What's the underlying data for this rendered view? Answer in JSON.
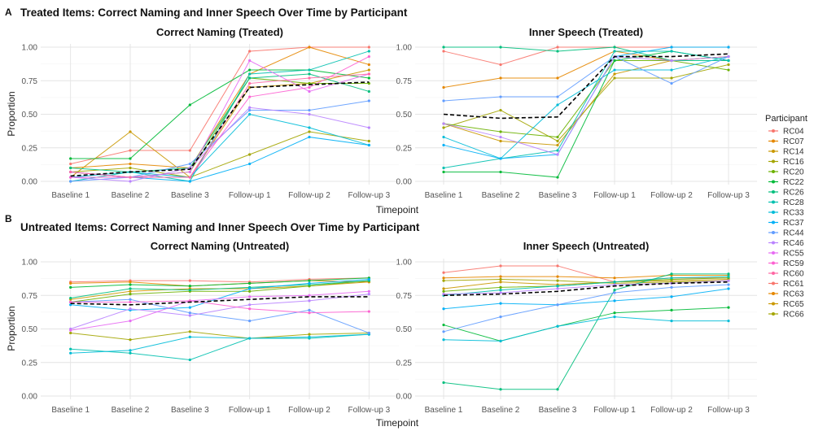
{
  "figure": {
    "sections": [
      {
        "tag": "A",
        "title": "Treated Items: Correct Naming and Inner Speech Over Time by Participant"
      },
      {
        "tag": "B",
        "title": "Untreated Items: Correct Naming and Inner Speech Over Time by Participant"
      }
    ],
    "legend": {
      "title": "Participant",
      "entries": [
        {
          "name": "RC04",
          "color": "#F8766D"
        },
        {
          "name": "RC07",
          "color": "#E58700"
        },
        {
          "name": "RC14",
          "color": "#C99800"
        },
        {
          "name": "RC16",
          "color": "#A3A500"
        },
        {
          "name": "RC20",
          "color": "#6BB100"
        },
        {
          "name": "RC22",
          "color": "#00BA38"
        },
        {
          "name": "RC26",
          "color": "#00BF7D"
        },
        {
          "name": "RC28",
          "color": "#00C0AF"
        },
        {
          "name": "RC33",
          "color": "#00BCD8"
        },
        {
          "name": "RC37",
          "color": "#00B0F6"
        },
        {
          "name": "RC44",
          "color": "#619CFF"
        },
        {
          "name": "RC46",
          "color": "#B983FF"
        },
        {
          "name": "RC55",
          "color": "#E76BF3"
        },
        {
          "name": "RC59",
          "color": "#FD61D1"
        },
        {
          "name": "RC60",
          "color": "#FF67A4"
        },
        {
          "name": "RC61",
          "color": "#F8766D"
        },
        {
          "name": "RC63",
          "color": "#E58700"
        },
        {
          "name": "RC65",
          "color": "#C99800"
        },
        {
          "name": "RC66",
          "color": "#A3A500"
        }
      ]
    }
  },
  "chart_data": [
    {
      "type": "line",
      "title": "Correct Naming (Treated)",
      "xlabel": "Timepoint",
      "ylabel": "Proportion",
      "ylim": [
        0,
        1
      ],
      "yticks": [
        "0.00",
        "0.25",
        "0.50",
        "0.75",
        "1.00"
      ],
      "categories": [
        "Baseline 1",
        "Baseline 2",
        "Baseline 3",
        "Follow-up 1",
        "Follow-up 2",
        "Follow-up 3"
      ],
      "series": [
        {
          "values": [
            0.13,
            0.23,
            0.23,
            0.97,
            1.0,
            1.0
          ]
        },
        {
          "values": [
            0.1,
            0.13,
            0.1,
            0.8,
            1.0,
            0.87
          ]
        },
        {
          "values": [
            0.03,
            0.37,
            0.03,
            0.7,
            0.73,
            0.83
          ]
        },
        {
          "values": [
            0.07,
            0.1,
            0.03,
            0.2,
            0.37,
            0.3
          ]
        },
        {
          "values": [
            0.07,
            0.03,
            0.07,
            0.77,
            0.73,
            0.73
          ]
        },
        {
          "values": [
            0.17,
            0.17,
            0.57,
            0.83,
            0.83,
            0.77
          ]
        },
        {
          "values": [
            0.1,
            0.07,
            0.1,
            0.77,
            0.8,
            0.67
          ]
        },
        {
          "values": [
            0.0,
            0.07,
            0.0,
            0.8,
            0.83,
            0.97
          ]
        },
        {
          "values": [
            0.03,
            0.07,
            0.03,
            0.5,
            0.4,
            0.27
          ]
        },
        {
          "values": [
            0.07,
            0.03,
            0.0,
            0.13,
            0.33,
            0.27
          ]
        },
        {
          "values": [
            0.0,
            0.03,
            0.13,
            0.53,
            0.53,
            0.6
          ]
        },
        {
          "values": [
            0.03,
            0.0,
            0.1,
            0.55,
            0.5,
            0.4
          ]
        },
        {
          "values": [
            0.07,
            0.03,
            0.07,
            0.9,
            0.67,
            0.8
          ]
        },
        {
          "values": [
            0.03,
            0.03,
            0.03,
            0.63,
            0.7,
            0.93
          ]
        },
        {
          "values": [
            0.07,
            0.03,
            0.03,
            0.73,
            0.77,
            0.8
          ]
        }
      ],
      "mean": [
        0.04,
        0.07,
        0.09,
        0.7,
        0.72,
        0.74
      ]
    },
    {
      "type": "line",
      "title": "Inner Speech (Treated)",
      "xlabel": "Timepoint",
      "ylabel": "",
      "ylim": [
        0,
        1
      ],
      "yticks": [
        "0.00",
        "0.25",
        "0.50",
        "0.75",
        "1.00"
      ],
      "categories": [
        "Baseline 1",
        "Baseline 2",
        "Baseline 3",
        "Follow-up 1",
        "Follow-up 2",
        "Follow-up 3"
      ],
      "series": [
        {
          "values": [
            0.97,
            0.87,
            1.0,
            1.0,
            1.0,
            1.0
          ]
        },
        {
          "values": [
            0.7,
            0.77,
            0.77,
            0.97,
            0.9,
            0.93
          ]
        },
        {
          "values": [
            0.43,
            0.3,
            0.27,
            0.8,
            0.9,
            0.93
          ]
        },
        {
          "values": [
            0.4,
            0.53,
            0.3,
            0.77,
            0.77,
            0.87
          ]
        },
        {
          "values": [
            0.43,
            0.37,
            0.33,
            0.9,
            0.9,
            0.83
          ]
        },
        {
          "values": [
            0.07,
            0.07,
            0.03,
            0.9,
            0.97,
            0.9
          ]
        },
        {
          "values": [
            1.0,
            1.0,
            0.97,
            1.0,
            0.9,
            0.9
          ]
        },
        {
          "values": [
            0.1,
            0.17,
            0.23,
            0.97,
            0.97,
            0.9
          ]
        },
        {
          "values": [
            0.33,
            0.17,
            0.57,
            0.83,
            0.83,
            0.93
          ]
        },
        {
          "values": [
            0.27,
            0.17,
            0.2,
            0.93,
            1.0,
            1.0
          ]
        },
        {
          "values": [
            0.6,
            0.63,
            0.63,
            0.93,
            0.73,
            0.93
          ]
        },
        {
          "values": [
            0.43,
            0.33,
            0.2,
            0.93,
            0.9,
            0.93
          ]
        }
      ],
      "mean": [
        0.5,
        0.47,
        0.48,
        0.93,
        0.93,
        0.95
      ]
    },
    {
      "type": "line",
      "title": "Correct Naming (Untreated)",
      "xlabel": "Timepoint",
      "ylabel": "Proportion",
      "ylim": [
        0,
        1
      ],
      "yticks": [
        "0.00",
        "0.25",
        "0.50",
        "0.75",
        "1.00"
      ],
      "categories": [
        "Baseline 1",
        "Baseline 2",
        "Baseline 3",
        "Follow-up 1",
        "Follow-up 2",
        "Follow-up 3"
      ],
      "series": [
        {
          "values": [
            0.85,
            0.86,
            0.86,
            0.85,
            0.87,
            0.88
          ]
        },
        {
          "values": [
            0.84,
            0.85,
            0.82,
            0.84,
            0.86,
            0.85
          ]
        },
        {
          "values": [
            0.72,
            0.78,
            0.8,
            0.8,
            0.82,
            0.85
          ]
        },
        {
          "values": [
            0.47,
            0.42,
            0.48,
            0.43,
            0.46,
            0.47
          ]
        },
        {
          "values": [
            0.7,
            0.76,
            0.78,
            0.78,
            0.82,
            0.86
          ]
        },
        {
          "values": [
            0.81,
            0.83,
            0.82,
            0.84,
            0.86,
            0.88
          ]
        },
        {
          "values": [
            0.73,
            0.8,
            0.79,
            0.81,
            0.83,
            0.86
          ]
        },
        {
          "values": [
            0.35,
            0.32,
            0.27,
            0.43,
            0.43,
            0.46
          ]
        },
        {
          "values": [
            0.32,
            0.34,
            0.44,
            0.43,
            0.44,
            0.46
          ]
        },
        {
          "values": [
            0.68,
            0.64,
            0.66,
            0.8,
            0.84,
            0.87
          ]
        },
        {
          "values": [
            0.7,
            0.72,
            0.62,
            0.56,
            0.64,
            0.47
          ]
        },
        {
          "values": [
            0.5,
            0.65,
            0.6,
            0.68,
            0.71,
            0.76
          ]
        },
        {
          "values": [
            0.49,
            0.56,
            0.71,
            0.74,
            0.75,
            0.78
          ]
        },
        {
          "values": [
            0.7,
            0.7,
            0.71,
            0.65,
            0.62,
            0.63
          ]
        }
      ],
      "mean": [
        0.69,
        0.68,
        0.7,
        0.72,
        0.74,
        0.74
      ]
    },
    {
      "type": "line",
      "title": "Inner Speech (Untreated)",
      "xlabel": "Timepoint",
      "ylabel": "",
      "ylim": [
        0,
        1
      ],
      "yticks": [
        "0.00",
        "0.25",
        "0.50",
        "0.75",
        "1.00"
      ],
      "categories": [
        "Baseline 1",
        "Baseline 2",
        "Baseline 3",
        "Follow-up 1",
        "Follow-up 2",
        "Follow-up 3"
      ],
      "series": [
        {
          "values": [
            0.92,
            0.97,
            0.97,
            0.85,
            0.88,
            0.88
          ]
        },
        {
          "values": [
            0.88,
            0.89,
            0.89,
            0.88,
            0.9,
            0.9
          ]
        },
        {
          "values": [
            0.8,
            0.85,
            0.83,
            0.85,
            0.86,
            0.87
          ]
        },
        {
          "values": [
            0.86,
            0.87,
            0.86,
            0.84,
            0.85,
            0.86
          ]
        },
        {
          "values": [
            0.78,
            0.81,
            0.82,
            0.85,
            0.87,
            0.88
          ]
        },
        {
          "values": [
            0.53,
            0.41,
            0.52,
            0.62,
            0.64,
            0.66
          ]
        },
        {
          "values": [
            0.1,
            0.05,
            0.05,
            0.79,
            0.91,
            0.91
          ]
        },
        {
          "values": [
            0.75,
            0.79,
            0.82,
            0.85,
            0.88,
            0.89
          ]
        },
        {
          "values": [
            0.42,
            0.41,
            0.52,
            0.59,
            0.56,
            0.56
          ]
        },
        {
          "values": [
            0.65,
            0.69,
            0.68,
            0.71,
            0.74,
            0.8
          ]
        },
        {
          "values": [
            0.48,
            0.59,
            0.68,
            0.77,
            0.81,
            0.83
          ]
        },
        {
          "values": [
            0.76,
            0.77,
            0.8,
            0.83,
            0.84,
            0.86
          ]
        }
      ],
      "mean": [
        0.75,
        0.76,
        0.78,
        0.82,
        0.84,
        0.85
      ]
    }
  ]
}
